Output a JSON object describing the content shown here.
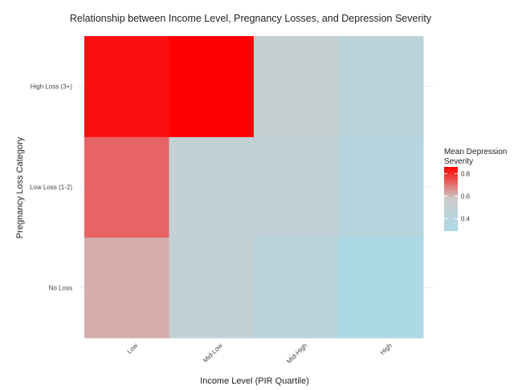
{
  "chart_data": {
    "type": "heatmap",
    "title": "Relationship between Income Level, Pregnancy Losses, and Depression Severity",
    "xlabel": "Income Level (PIR Quartile)",
    "ylabel": "Pregnancy Loss Category",
    "x_categories": [
      "Low",
      "Mid-Low",
      "Mid-High",
      "High"
    ],
    "y_categories": [
      "No Loss",
      "Low Loss (1-2)",
      "High Loss (3+)"
    ],
    "values": [
      [
        0.62,
        0.48,
        0.4,
        0.29
      ],
      [
        0.72,
        0.49,
        0.47,
        0.37
      ],
      [
        0.84,
        0.86,
        0.51,
        0.41
      ]
    ],
    "legend": {
      "title_lines": [
        "Mean Depression",
        "Severity"
      ],
      "ticks": [
        "0.4",
        "0.6",
        "0.8"
      ],
      "tick_values": [
        0.4,
        0.6,
        0.8
      ],
      "range": [
        0.29,
        0.86
      ],
      "placement": "right"
    },
    "colors": {
      "low": "#add8e6",
      "mid": "#cccccc",
      "high": "#ff0000"
    },
    "grid": true
  }
}
